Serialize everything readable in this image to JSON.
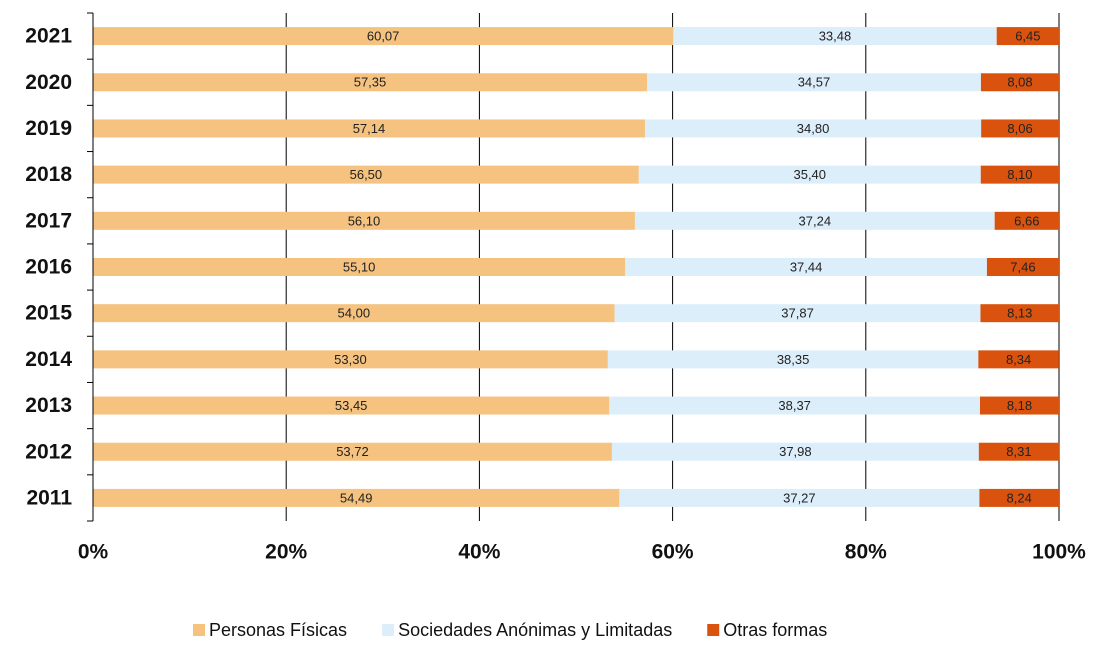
{
  "chart_data": {
    "type": "stacked_bar_horizontal",
    "categories": [
      "2021",
      "2020",
      "2019",
      "2018",
      "2017",
      "2016",
      "2015",
      "2014",
      "2013",
      "2012",
      "2011"
    ],
    "series": [
      {
        "name": "Personas Físicas",
        "color": "#f5c27f",
        "values": [
          60.07,
          57.35,
          57.14,
          56.5,
          56.1,
          55.1,
          54.0,
          53.3,
          53.45,
          53.72,
          54.49
        ],
        "value_labels": [
          "60,07",
          "57,35",
          "57,14",
          "56,50",
          "56,10",
          "55,10",
          "54,00",
          "53,30",
          "53,45",
          "53,72",
          "54,49"
        ]
      },
      {
        "name": "Sociedades Anónimas y Limitadas",
        "color": "#ddeefb",
        "values": [
          33.48,
          34.57,
          34.8,
          35.4,
          37.24,
          37.44,
          37.87,
          38.35,
          38.37,
          37.98,
          37.27
        ],
        "value_labels": [
          "33,48",
          "34,57",
          "34,80",
          "35,40",
          "37,24",
          "37,44",
          "37,87",
          "38,35",
          "38,37",
          "37,98",
          "37,27"
        ]
      },
      {
        "name": "Otras formas",
        "color": "#d9530f",
        "values": [
          6.45,
          8.08,
          8.06,
          8.1,
          6.66,
          7.46,
          8.13,
          8.34,
          8.18,
          8.31,
          8.24
        ],
        "value_labels": [
          "6,45",
          "8,08",
          "8,06",
          "8,10",
          "6,66",
          "7,46",
          "8,13",
          "8,34",
          "8,18",
          "8,31",
          "8,24"
        ]
      }
    ],
    "xlim": [
      0,
      100
    ],
    "xticks": [
      {
        "value": 0,
        "label": "0%"
      },
      {
        "value": 20,
        "label": "20%"
      },
      {
        "value": 40,
        "label": "40%"
      },
      {
        "value": 60,
        "label": "60%"
      },
      {
        "value": 80,
        "label": "80%"
      },
      {
        "value": 100,
        "label": "100%"
      }
    ],
    "grid": true,
    "legend": "bottom"
  }
}
